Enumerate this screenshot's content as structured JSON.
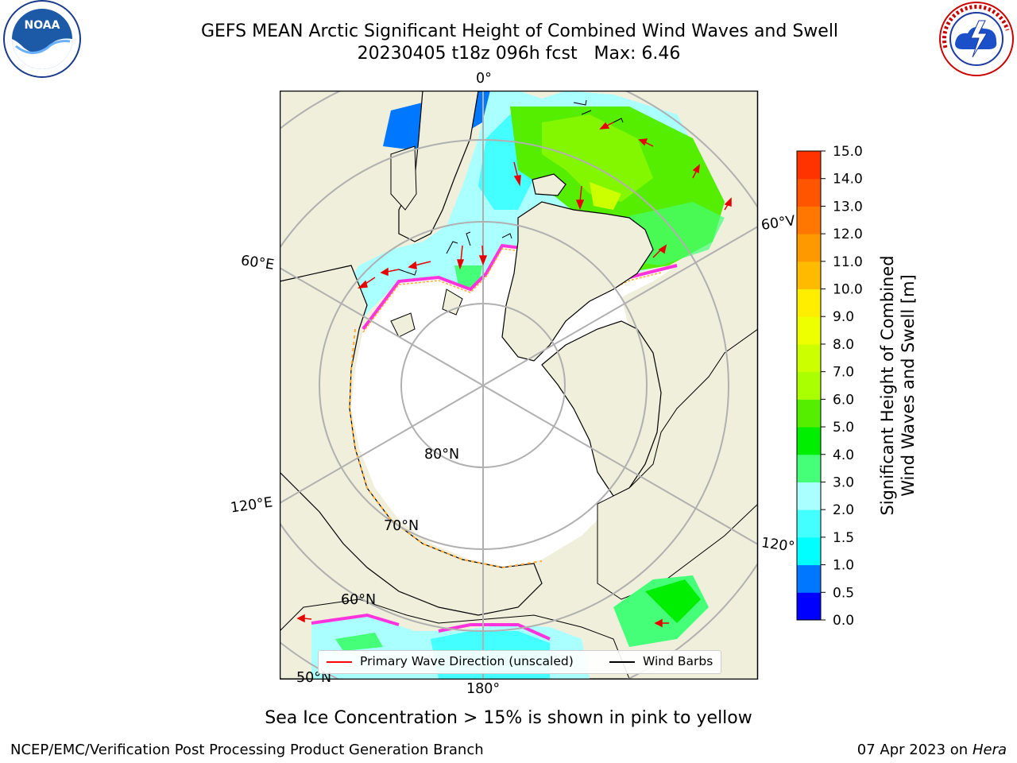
{
  "title": {
    "line1": "GEFS MEAN Arctic Significant Height of Combined Wind Waves and Swell",
    "line2": "20230405 t18z 096h fcst   Max: 6.46"
  },
  "map": {
    "meridian_labels": {
      "top": "0°",
      "left_upper": "60°E",
      "left_lower": "120°E",
      "bottom": "180°",
      "right_lower": "120°",
      "right_upper": "60°V"
    },
    "latitude_labels": [
      "80°N",
      "70°N",
      "60°N",
      "50°N"
    ],
    "colors": {
      "land": "#efefdc",
      "ocean_ice": "#ffffff",
      "grid": "#b0b0b0",
      "ice_edge_pink": "#ff33dd",
      "ice_edge_orange": "#ffaa33",
      "wave_arrow": "#e60000"
    }
  },
  "colorbar": {
    "ticks": [
      "0.0",
      "0.5",
      "1.0",
      "1.5",
      "2.0",
      "3.0",
      "4.0",
      "5.0",
      "6.0",
      "7.0",
      "8.0",
      "9.0",
      "10.0",
      "11.0",
      "12.0",
      "13.0",
      "14.0",
      "15.0"
    ],
    "colors": [
      "#0000ff",
      "#0077ff",
      "#00ffff",
      "#44ffff",
      "#aaffff",
      "#44ff77",
      "#00ee00",
      "#55ee00",
      "#aaff00",
      "#ccff00",
      "#eeff00",
      "#ffee00",
      "#ffbb00",
      "#ff9900",
      "#ff7700",
      "#ff5500",
      "#ff3300"
    ],
    "label_line1": "Significant Height of Combined",
    "label_line2": "Wind Waves and Swell [m]"
  },
  "legend": {
    "primary_wave": "Primary Wave Direction (unscaled)",
    "wind_barbs": "Wind Barbs",
    "primary_wave_color": "#ff0000",
    "wind_barbs_color": "#000000"
  },
  "note": "Sea Ice Concentration > 15% is shown in pink to yellow",
  "footer": {
    "credit": "NCEP/EMC/Verification Post Processing Product Generation Branch",
    "date": "07 Apr 2023 on ",
    "machine": "Hera"
  },
  "logos": {
    "noaa_text": "NOAA",
    "nws_text": "NATIONAL WEATHER SERVICE"
  }
}
